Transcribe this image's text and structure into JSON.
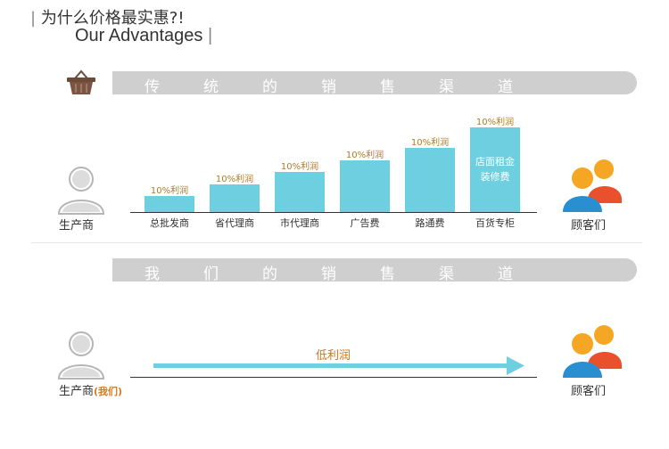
{
  "header": {
    "title_cn": "为什么价格最实惠?!",
    "title_en": "Our Advantages",
    "bar": "|"
  },
  "colors": {
    "bar": "#6ecfe0",
    "banner": "#cfcfcf",
    "accent_orange": "#f5a623",
    "accent_blue": "#2a8fd0",
    "accent_red": "#e8512b"
  },
  "traditional": {
    "banner_chars": [
      "传",
      "统",
      "的",
      "销",
      "售",
      "渠",
      "道"
    ],
    "producer_label": "生产商",
    "customer_label": "顾客们",
    "chart_data": {
      "type": "bar",
      "categories": [
        "总批发商",
        "省代理商",
        "市代理商",
        "广告费",
        "路通费",
        "百货专柜"
      ],
      "values": [
        1,
        2,
        3,
        4,
        5,
        7
      ],
      "labels": [
        "10%利润",
        "10%利润",
        "10%利润",
        "10%利润",
        "10%利润",
        "10%利润"
      ],
      "last_bar_inner_text": [
        "店面租金",
        "装修费"
      ]
    }
  },
  "ours": {
    "banner_chars": [
      "我",
      "们",
      "的",
      "销",
      "售",
      "渠",
      "道"
    ],
    "producer_label": "生产商",
    "producer_sub": "(我们)",
    "customer_label": "顾客们",
    "arrow_label": "低利润"
  }
}
